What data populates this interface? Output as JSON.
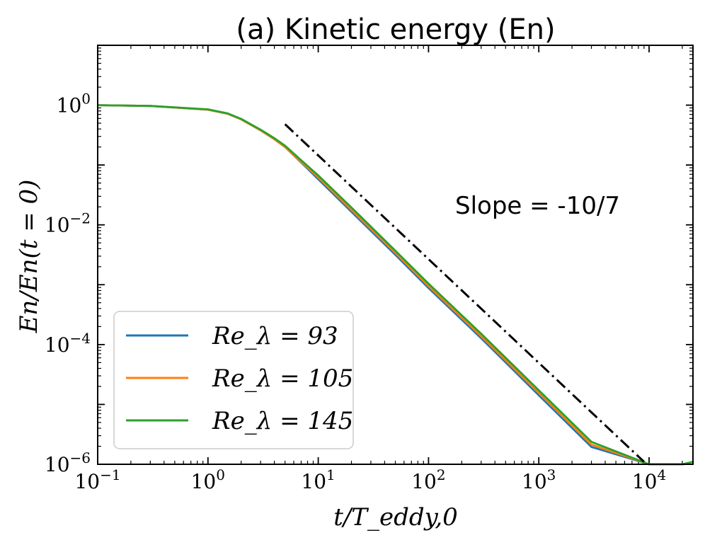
{
  "chart_data": {
    "type": "line",
    "title": "(a) Kinetic energy (En)",
    "xlabel": "t/T_eddy,0",
    "ylabel": "En/En(t = 0)",
    "x_scale": "log",
    "y_scale": "log",
    "xlim": [
      0.1,
      25000
    ],
    "ylim": [
      1e-06,
      10
    ],
    "x_ticks": [
      {
        "value": 0.1,
        "base": "10",
        "exp": "−1"
      },
      {
        "value": 1,
        "base": "10",
        "exp": "0"
      },
      {
        "value": 10,
        "base": "10",
        "exp": "1"
      },
      {
        "value": 100,
        "base": "10",
        "exp": "2"
      },
      {
        "value": 1000,
        "base": "10",
        "exp": "3"
      },
      {
        "value": 10000,
        "base": "10",
        "exp": "4"
      }
    ],
    "y_ticks": [
      {
        "value": 1e-06,
        "base": "10",
        "exp": "−6"
      },
      {
        "value": 0.0001,
        "base": "10",
        "exp": "−4"
      },
      {
        "value": 0.01,
        "base": "10",
        "exp": "−2"
      },
      {
        "value": 1,
        "base": "10",
        "exp": "0"
      }
    ],
    "grid": false,
    "legend_position": "lower-left",
    "series": [
      {
        "name": "Re_λ = 93",
        "color": "#1f77b4",
        "x": [
          0.1,
          0.3,
          1,
          1.5,
          2,
          3,
          4,
          5,
          7,
          10,
          20,
          50,
          100,
          300,
          1000,
          3000,
          10000,
          15000,
          19000
        ],
        "y": [
          1.0,
          0.97,
          0.84,
          0.72,
          0.58,
          0.38,
          0.27,
          0.2,
          0.11,
          0.058,
          0.0165,
          0.00316,
          0.00088,
          0.000128,
          1.42e-05,
          1.95e-06,
          3.6e-07,
          1.8e-07,
          1e-06
        ]
      },
      {
        "name": "Re_λ = 105",
        "color": "#ff7f0e",
        "x": [
          0.1,
          0.3,
          1,
          1.5,
          2,
          3,
          4,
          5,
          7,
          10,
          20,
          50,
          100,
          300,
          1000,
          3000,
          10000,
          17000,
          21000
        ],
        "y": [
          1.0,
          0.97,
          0.84,
          0.72,
          0.58,
          0.38,
          0.27,
          0.2,
          0.113,
          0.062,
          0.0178,
          0.0034,
          0.00095,
          0.000138,
          1.55e-05,
          2.13e-06,
          3.9e-07,
          1.6e-07,
          1e-06
        ]
      },
      {
        "name": "Re_λ = 145",
        "color": "#2ca02c",
        "x": [
          0.1,
          0.3,
          1,
          1.5,
          2,
          3,
          4,
          5,
          7,
          10,
          20,
          50,
          100,
          300,
          1000,
          3000,
          10000,
          20000,
          25000
        ],
        "y": [
          1.0,
          0.97,
          0.85,
          0.73,
          0.59,
          0.39,
          0.28,
          0.21,
          0.12,
          0.067,
          0.0195,
          0.0037,
          0.00104,
          0.000152,
          1.72e-05,
          2.37e-06,
          4.3e-07,
          1.6e-07,
          1.1e-06
        ]
      }
    ],
    "reference_line": {
      "label": "Slope = -10/7",
      "slope": -1.4285714,
      "x": [
        5,
        9000
      ],
      "y": [
        0.48,
        1.1e-06
      ],
      "style": "dash-dot",
      "color": "#000000"
    }
  }
}
